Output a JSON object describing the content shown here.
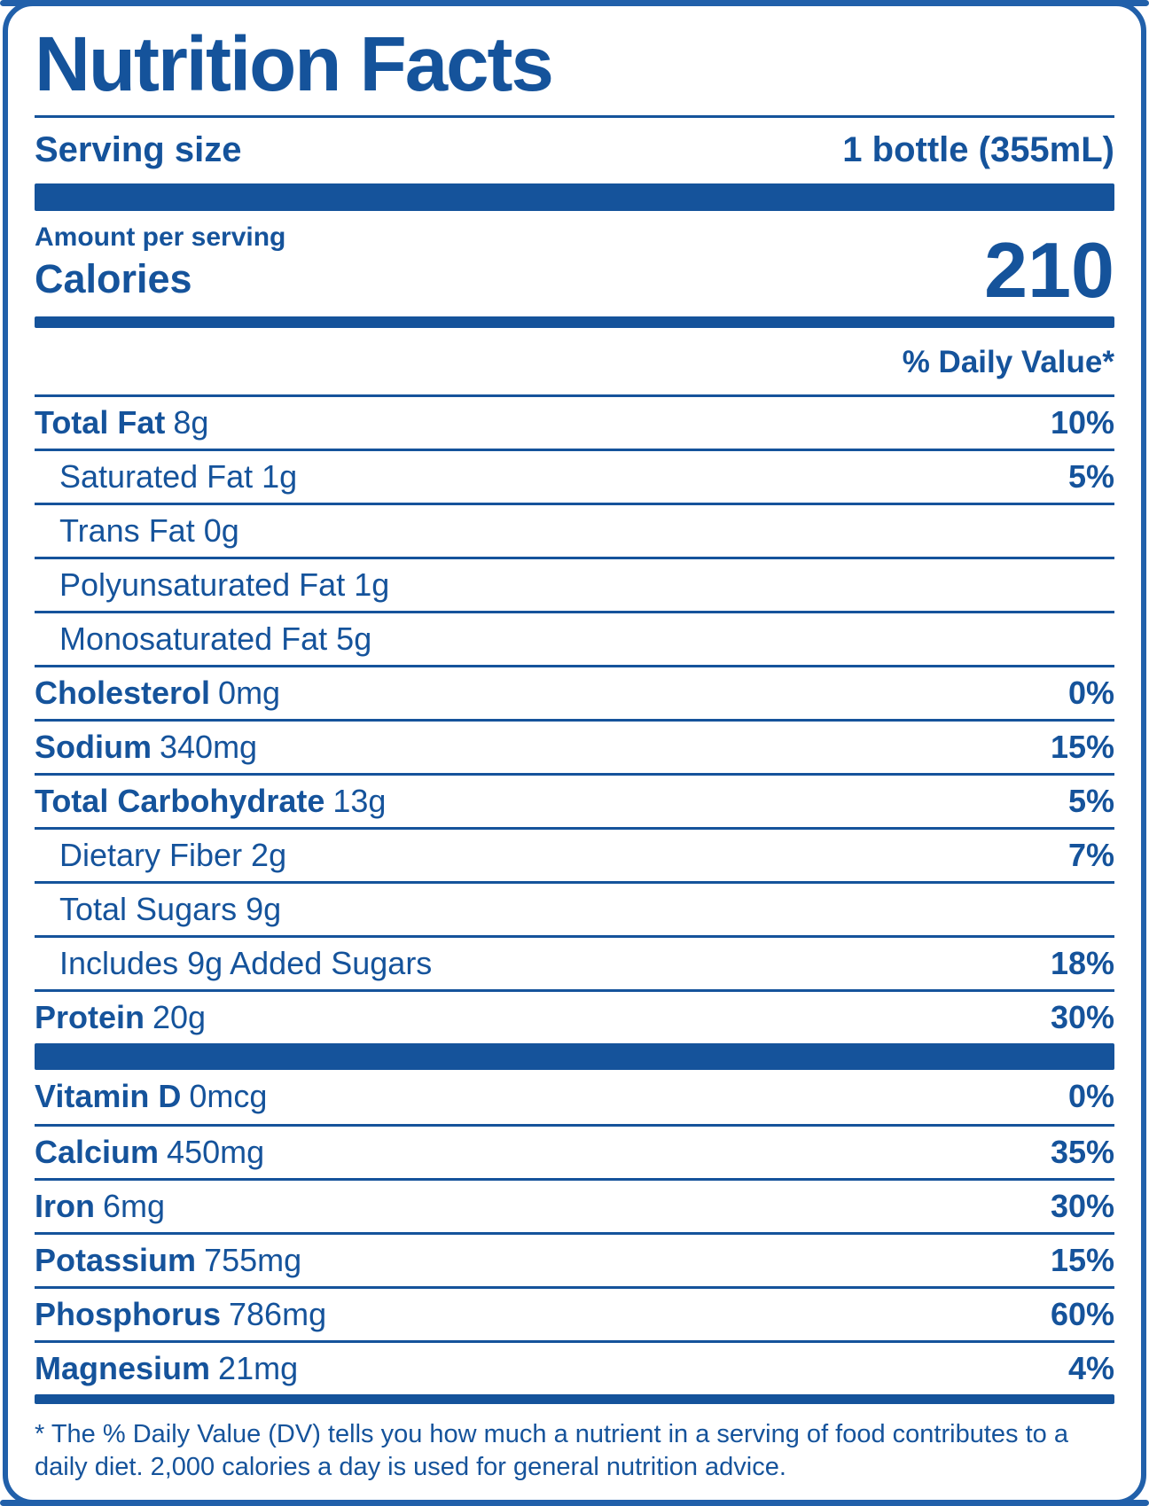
{
  "colors": {
    "accent": "#15539B",
    "border": "#2160AA"
  },
  "title": "Nutrition Facts",
  "serving_size": {
    "label": "Serving size",
    "value": "1 bottle (355mL)"
  },
  "calories": {
    "section_label": "Amount per serving",
    "label": "Calories",
    "value": "210"
  },
  "daily_value_header": "% Daily Value*",
  "nutrients": [
    {
      "name": "Total Fat",
      "amount": "8g",
      "dv": "10%"
    },
    {
      "name": "",
      "amount": "Saturated Fat 1g",
      "dv": "5%"
    },
    {
      "name": "",
      "amount": "Trans Fat 0g",
      "dv": ""
    },
    {
      "name": "",
      "amount": "Polyunsaturated Fat 1g",
      "dv": ""
    },
    {
      "name": "",
      "amount": "Monosaturated Fat 5g",
      "dv": ""
    },
    {
      "name": "Cholesterol",
      "amount": "0mg",
      "dv": "0%"
    },
    {
      "name": "Sodium",
      "amount": "340mg",
      "dv": "15%"
    },
    {
      "name": "Total Carbohydrate",
      "amount": "13g",
      "dv": "5%"
    },
    {
      "name": "",
      "amount": "Dietary Fiber 2g",
      "dv": "7%"
    },
    {
      "name": "",
      "amount": "Total Sugars 9g",
      "dv": ""
    },
    {
      "name": "",
      "amount": "Includes 9g Added Sugars",
      "dv": "18%"
    },
    {
      "name": "Protein",
      "amount": "20g",
      "dv": "30%"
    }
  ],
  "micronutrients": [
    {
      "name": "Vitamin D",
      "amount": "0mcg",
      "dv": "0%"
    },
    {
      "name": "Calcium",
      "amount": "450mg",
      "dv": "35%"
    },
    {
      "name": "Iron",
      "amount": "6mg",
      "dv": "30%"
    },
    {
      "name": "Potassium",
      "amount": "755mg",
      "dv": "15%"
    },
    {
      "name": "Phosphorus",
      "amount": "786mg",
      "dv": "60%"
    },
    {
      "name": "Magnesium",
      "amount": "21mg",
      "dv": "4%"
    }
  ],
  "footnote": "* The % Daily Value (DV) tells you how much a nutrient in a serving of food contributes to a daily diet. 2,000 calories a day is used for general nutrition advice."
}
